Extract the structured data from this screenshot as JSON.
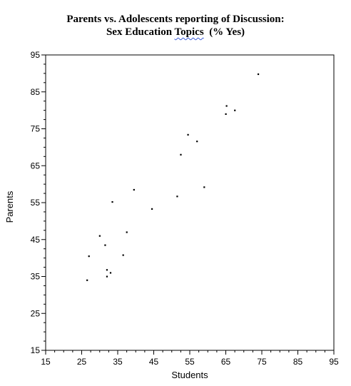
{
  "chart_data": {
    "type": "scatter",
    "title_line1": "Parents vs. Adolescents reporting of Discussion:",
    "title_line2_pre": "Sex Education ",
    "title_line2_squiggle": "Topics",
    "title_line2_post": "  (% Yes)",
    "xlabel": "Students",
    "ylabel": "Parents",
    "xlim": [
      15,
      95
    ],
    "ylim": [
      15,
      95
    ],
    "xticks": [
      15,
      25,
      35,
      45,
      55,
      65,
      75,
      85,
      95
    ],
    "yticks": [
      15,
      25,
      35,
      45,
      55,
      65,
      75,
      85,
      95
    ],
    "grid": false,
    "points": [
      {
        "x": 26.5,
        "y": 34.0
      },
      {
        "x": 27.0,
        "y": 40.5
      },
      {
        "x": 30.0,
        "y": 46.0
      },
      {
        "x": 31.5,
        "y": 43.5
      },
      {
        "x": 32.0,
        "y": 35.0
      },
      {
        "x": 32.0,
        "y": 36.8
      },
      {
        "x": 33.0,
        "y": 36.0
      },
      {
        "x": 33.5,
        "y": 55.2
      },
      {
        "x": 36.5,
        "y": 40.8
      },
      {
        "x": 37.5,
        "y": 47.0
      },
      {
        "x": 39.5,
        "y": 58.5
      },
      {
        "x": 44.5,
        "y": 53.3
      },
      {
        "x": 51.5,
        "y": 56.7
      },
      {
        "x": 52.5,
        "y": 68.0
      },
      {
        "x": 54.5,
        "y": 73.4
      },
      {
        "x": 57.0,
        "y": 71.6
      },
      {
        "x": 59.0,
        "y": 59.2
      },
      {
        "x": 65.0,
        "y": 79.0
      },
      {
        "x": 65.2,
        "y": 81.2
      },
      {
        "x": 67.5,
        "y": 80.0
      },
      {
        "x": 74.0,
        "y": 89.8
      }
    ]
  }
}
